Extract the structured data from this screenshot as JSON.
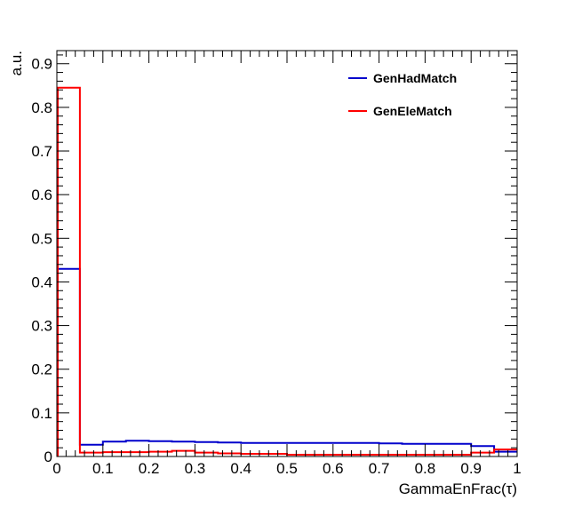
{
  "chart_data": {
    "type": "histogram",
    "title": "",
    "xlabel": "GammaEnFrac(τ)",
    "ylabel": "a.u.",
    "xlim": [
      0,
      1
    ],
    "ylim": [
      0,
      0.93
    ],
    "x_ticks": [
      "0",
      "0.1",
      "0.2",
      "0.3",
      "0.4",
      "0.5",
      "0.6",
      "0.7",
      "0.8",
      "0.9",
      "1"
    ],
    "y_ticks": [
      "0",
      "0.1",
      "0.2",
      "0.3",
      "0.4",
      "0.5",
      "0.6",
      "0.7",
      "0.8",
      "0.9"
    ],
    "bin_edges": [
      0,
      0.05,
      0.1,
      0.15,
      0.2,
      0.25,
      0.3,
      0.35,
      0.4,
      0.45,
      0.5,
      0.55,
      0.6,
      0.65,
      0.7,
      0.75,
      0.8,
      0.85,
      0.9,
      0.95,
      1.0
    ],
    "series": [
      {
        "name": "GenHadMatch",
        "color": "#0000cc",
        "values": [
          0.43,
          0.027,
          0.034,
          0.036,
          0.035,
          0.034,
          0.033,
          0.032,
          0.031,
          0.031,
          0.031,
          0.031,
          0.031,
          0.031,
          0.03,
          0.029,
          0.029,
          0.029,
          0.024,
          0.011
        ]
      },
      {
        "name": "GenEleMatch",
        "color": "#ff0000",
        "values": [
          0.845,
          0.009,
          0.01,
          0.01,
          0.011,
          0.013,
          0.009,
          0.007,
          0.006,
          0.006,
          0.004,
          0.004,
          0.004,
          0.004,
          0.004,
          0.004,
          0.004,
          0.004,
          0.009,
          0.016
        ]
      }
    ],
    "legend_position": "top-right",
    "grid": false
  }
}
